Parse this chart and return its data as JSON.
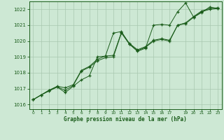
{
  "bg_color": "#cde8d4",
  "grid_color": "#a8c8b0",
  "line_color": "#1a5c1a",
  "marker_color": "#1a5c1a",
  "xlabel": "Graphe pression niveau de la mer (hPa)",
  "xlabel_color": "#1a5c1a",
  "ylim": [
    1015.7,
    1022.5
  ],
  "xlim": [
    -0.5,
    23.5
  ],
  "yticks": [
    1016,
    1017,
    1018,
    1019,
    1020,
    1021,
    1022
  ],
  "xtick_positions": [
    0,
    1,
    2,
    3,
    4,
    5,
    6,
    7,
    8,
    9,
    10,
    11,
    12,
    13,
    14,
    15,
    16,
    17,
    19,
    20,
    21,
    22,
    23
  ],
  "xtick_labels": [
    "0",
    "1",
    "2",
    "3",
    "4",
    "5",
    "6",
    "7",
    "8",
    "9",
    "10",
    "11",
    "12",
    "13",
    "14",
    "15",
    "16",
    "17",
    "19",
    "20",
    "21",
    "22",
    "23"
  ],
  "series": [
    [
      1016.3,
      1016.6,
      1016.85,
      1017.1,
      1016.75,
      1017.15,
      1017.55,
      1017.8,
      1019.0,
      1019.05,
      1020.5,
      1020.6,
      1019.8,
      1019.35,
      1019.55,
      1021.0,
      1021.05,
      1021.0,
      1021.85,
      1022.4,
      1021.5,
      1021.8,
      1022.15,
      1022.05
    ],
    [
      1016.3,
      1016.6,
      1016.9,
      1017.1,
      1016.9,
      1017.2,
      1018.1,
      1018.35,
      1018.75,
      1018.95,
      1019.0,
      1020.5,
      1019.8,
      1019.4,
      1019.6,
      1020.0,
      1020.1,
      1020.0,
      1021.0,
      1021.1,
      1021.5,
      1021.85,
      1022.0,
      1022.05
    ],
    [
      1016.3,
      1016.6,
      1016.9,
      1017.15,
      1017.05,
      1017.25,
      1018.15,
      1018.4,
      1018.85,
      1019.05,
      1019.1,
      1020.55,
      1019.85,
      1019.45,
      1019.65,
      1020.05,
      1020.15,
      1020.05,
      1021.0,
      1021.15,
      1021.55,
      1021.9,
      1022.05,
      1022.1
    ]
  ]
}
